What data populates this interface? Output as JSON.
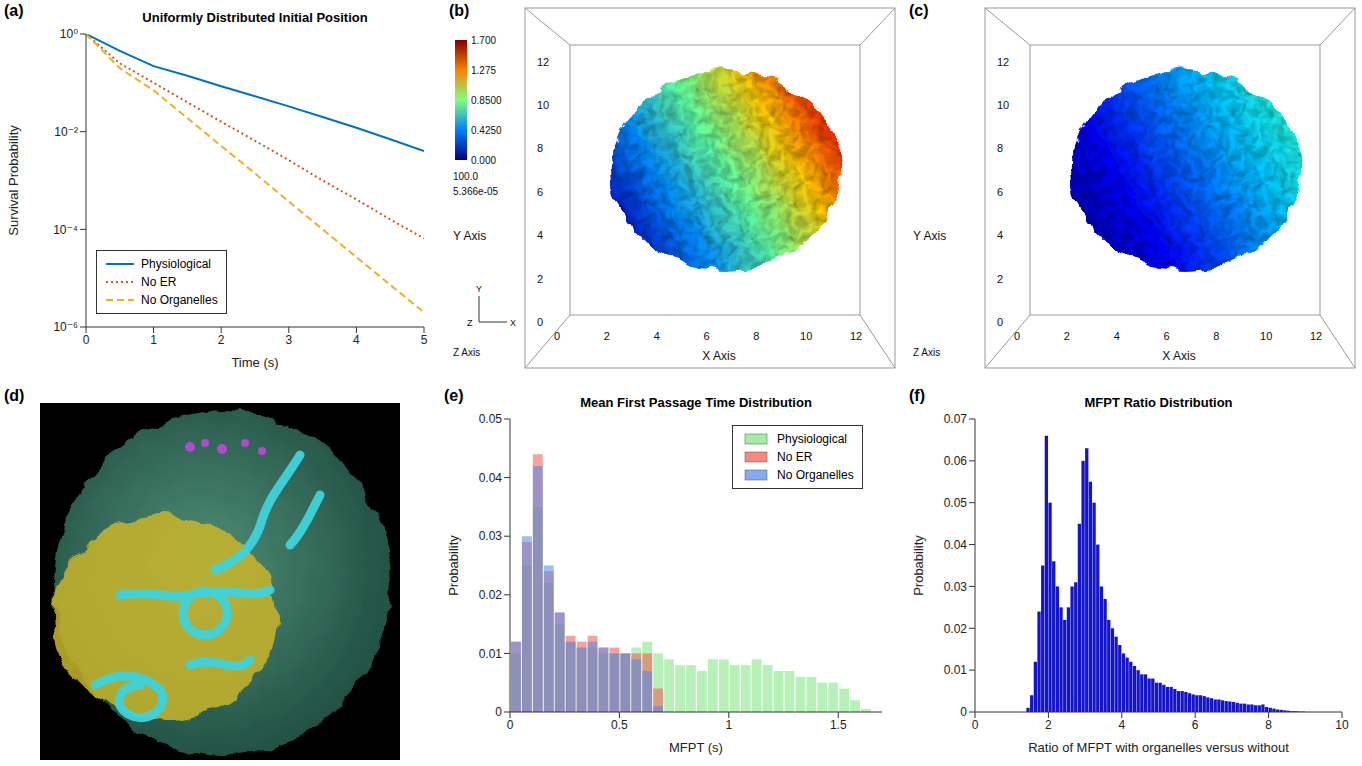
{
  "chart_data": [
    {
      "panel": "(a)",
      "type": "line",
      "title": "Uniformly Distributed Initial Position",
      "x_label": "Time (s)",
      "y_label": "Survival Probability",
      "log": "y",
      "xlim": [
        0,
        5
      ],
      "xticks": [
        0,
        1,
        2,
        3,
        4,
        5
      ],
      "ylim": [
        1e-06,
        1
      ],
      "yticks": [
        {
          "value": 1e-06,
          "label": "10⁻⁶"
        },
        {
          "value": 0.0001,
          "label": "10⁻⁴"
        },
        {
          "value": 0.01,
          "label": "10⁻²"
        },
        {
          "value": 1,
          "label": "10⁰"
        }
      ],
      "legend": "lower left",
      "x": [
        0,
        0.5,
        1,
        1.5,
        2,
        2.5,
        3,
        3.5,
        4,
        4.5,
        5
      ],
      "series": [
        {
          "name": "Physiological",
          "color": "#0072BD",
          "line_style": "solid",
          "values": [
            1,
            0.45,
            0.22,
            0.14,
            0.085,
            0.053,
            0.033,
            0.02,
            0.012,
            0.007,
            0.004
          ]
        },
        {
          "name": "No ER",
          "color": "#D95319",
          "line_style": "dotted",
          "values": [
            1,
            0.25,
            0.1,
            0.04,
            0.016,
            0.0065,
            0.0026,
            0.001,
            0.00041,
            0.00016,
            6.5e-05
          ]
        },
        {
          "name": "No Organelles",
          "color": "#EDB120",
          "line_style": "dashed",
          "values": [
            1,
            0.2,
            0.07,
            0.019,
            0.0051,
            0.0014,
            0.00037,
            0.0001,
            2.7e-05,
            7.3e-06,
            2e-06
          ]
        }
      ]
    },
    {
      "panel": "(e)",
      "type": "histogram",
      "title": "Mean First Passage Time Distribution",
      "x_label": "MFPT (s)",
      "y_label": "Probability",
      "xlim": [
        0,
        1.7
      ],
      "xticks": [
        0,
        0.5,
        1,
        1.5
      ],
      "ylim": [
        0,
        0.05
      ],
      "yticks": [
        0,
        0.01,
        0.02,
        0.03,
        0.04,
        0.05
      ],
      "legend": "upper right",
      "bins": [
        0,
        0.05,
        0.1,
        0.15,
        0.2,
        0.25,
        0.3,
        0.35,
        0.4,
        0.45,
        0.5,
        0.55,
        0.6,
        0.65,
        0.7,
        0.75,
        0.8,
        0.85,
        0.9,
        0.95,
        1,
        1.05,
        1.1,
        1.15,
        1.2,
        1.25,
        1.3,
        1.35,
        1.4,
        1.45,
        1.5,
        1.55,
        1.6,
        1.65,
        1.7
      ],
      "series": [
        {
          "name": "Physiological",
          "color": "#7ee67e",
          "values": [
            0.01,
            0.025,
            0.035,
            0.022,
            0.015,
            0.012,
            0.011,
            0.011,
            0.01,
            0.01,
            0.01,
            0.011,
            0.012,
            0.01,
            0.009,
            0.008,
            0.008,
            0.007,
            0.009,
            0.009,
            0.008,
            0.008,
            0.009,
            0.008,
            0.007,
            0.007,
            0.006,
            0.006,
            0.005,
            0.005,
            0.004,
            0.002,
            0.0005,
            0
          ]
        },
        {
          "name": "No ER",
          "color": "#f2554d",
          "values": [
            0.012,
            0.029,
            0.044,
            0.024,
            0.017,
            0.013,
            0.012,
            0.013,
            0.011,
            0.011,
            0.01,
            0.01,
            0.01,
            0.004,
            0,
            0,
            0,
            0,
            0,
            0,
            0,
            0,
            0,
            0,
            0,
            0,
            0,
            0,
            0,
            0,
            0,
            0,
            0,
            0
          ]
        },
        {
          "name": "No Organelles",
          "color": "#4f86ee",
          "values": [
            0.012,
            0.03,
            0.042,
            0.025,
            0.017,
            0.012,
            0.011,
            0.012,
            0.011,
            0.01,
            0.01,
            0.009,
            0.007,
            0.001,
            0,
            0,
            0,
            0,
            0,
            0,
            0,
            0,
            0,
            0,
            0,
            0,
            0,
            0,
            0,
            0,
            0,
            0,
            0,
            0
          ]
        }
      ]
    },
    {
      "panel": "(f)",
      "type": "histogram",
      "title": "MFPT Ratio Distribution",
      "x_label": "Ratio of MFPT with organelles versus without",
      "y_label": "Probability",
      "xlim": [
        0,
        10
      ],
      "xticks": [
        0,
        2,
        4,
        6,
        8,
        10
      ],
      "ylim": [
        0,
        0.07
      ],
      "yticks": [
        0,
        0.01,
        0.02,
        0.03,
        0.04,
        0.05,
        0.06,
        0.07
      ],
      "color": "#1414c8",
      "bins": [
        1.4,
        1.5,
        1.6,
        1.7,
        1.8,
        1.9,
        2,
        2.1,
        2.2,
        2.3,
        2.4,
        2.5,
        2.6,
        2.7,
        2.8,
        2.9,
        3,
        3.1,
        3.2,
        3.3,
        3.4,
        3.5,
        3.6,
        3.7,
        3.8,
        3.9,
        4,
        4.1,
        4.2,
        4.3,
        4.4,
        4.5,
        4.6,
        4.7,
        4.8,
        4.9,
        5,
        5.1,
        5.2,
        5.3,
        5.4,
        5.5,
        5.6,
        5.7,
        5.8,
        5.9,
        6,
        6.1,
        6.2,
        6.3,
        6.4,
        6.5,
        6.6,
        6.7,
        6.8,
        6.9,
        7,
        7.1,
        7.2,
        7.3,
        7.4,
        7.5,
        7.6,
        7.7,
        7.8,
        7.9,
        8,
        8.1,
        8.2,
        8.3,
        8.4,
        8.5,
        8.6,
        8.7,
        8.8,
        8.9,
        9
      ],
      "values": [
        0.001,
        0.004,
        0.012,
        0.024,
        0.035,
        0.066,
        0.05,
        0.036,
        0.03,
        0.025,
        0.022,
        0.025,
        0.03,
        0.031,
        0.045,
        0.06,
        0.063,
        0.055,
        0.05,
        0.04,
        0.03,
        0.027,
        0.022,
        0.02,
        0.018,
        0.016,
        0.014,
        0.013,
        0.012,
        0.011,
        0.01,
        0.009,
        0.009,
        0.008,
        0.008,
        0.007,
        0.007,
        0.0065,
        0.006,
        0.006,
        0.0055,
        0.005,
        0.005,
        0.0048,
        0.0045,
        0.0042,
        0.004,
        0.004,
        0.0038,
        0.0035,
        0.0033,
        0.003,
        0.003,
        0.0028,
        0.0026,
        0.0025,
        0.0024,
        0.0022,
        0.002,
        0.002,
        0.0018,
        0.0018,
        0.0016,
        0.0016,
        0.0018,
        0.0012,
        0.001,
        0.0008,
        0.0006,
        0.0005,
        0.0004,
        0.0003,
        0.0002,
        0.0002,
        0.0001,
        0.0001
      ]
    }
  ],
  "renderings": [
    {
      "panel": "(b)",
      "x_label": "X Axis",
      "y_label": "Y Axis",
      "z_label": "Z Axis",
      "xlim": [
        0,
        13
      ],
      "ylim": [
        0,
        13
      ],
      "xticks": [
        0,
        2,
        4,
        6,
        8,
        10,
        12
      ],
      "yticks": [
        0,
        2,
        4,
        6,
        8,
        10,
        12
      ],
      "cell_center": [
        6.8,
        7
      ],
      "cell_radius": 4.6,
      "value_range": [
        0.1,
        1.5
      ],
      "colorbar": {
        "range": [
          0,
          1.7
        ],
        "ticks": [
          {
            "value": 0,
            "label": "0.000"
          },
          {
            "value": 0.425,
            "label": "0.4250"
          },
          {
            "value": 0.85,
            "label": "0.8500"
          },
          {
            "value": 1.275,
            "label": "1.275"
          },
          {
            "value": 1.7,
            "label": "1.700"
          }
        ],
        "labels": [
          "100.0",
          "5.366e-05"
        ]
      },
      "orientation_labels": [
        "Y",
        "Z",
        "X"
      ]
    },
    {
      "panel": "(c)",
      "x_label": "X Axis",
      "y_label": "Y Axis",
      "z_label": "Z Axis",
      "xlim": [
        0,
        13
      ],
      "ylim": [
        0,
        13
      ],
      "xticks": [
        0,
        2,
        4,
        6,
        8,
        10,
        12
      ],
      "yticks": [
        0,
        2,
        4,
        6,
        8,
        10,
        12
      ],
      "cell_center": [
        6.8,
        7
      ],
      "cell_radius": 4.6,
      "value_range": [
        0.05,
        0.7
      ]
    },
    {
      "panel": "(d)"
    }
  ]
}
